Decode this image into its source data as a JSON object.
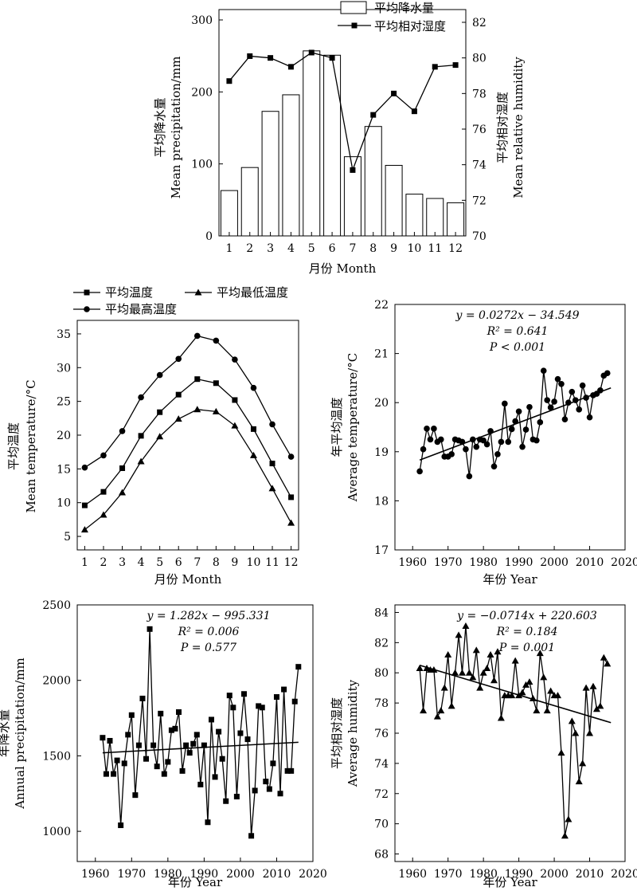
{
  "chart_data": [
    {
      "id": "p1",
      "type": "bar+line",
      "xlabel": "月份  Month",
      "ylabel_zh": "平均降水量",
      "ylabel_en": "Mean precipitation/mm",
      "y2label_zh": "平均相对湿度",
      "y2label_en": "Mean relative humidity",
      "categories": [
        "1",
        "2",
        "3",
        "4",
        "5",
        "6",
        "7",
        "8",
        "9",
        "10",
        "11",
        "12"
      ],
      "ylim": [
        0,
        300
      ],
      "yticks": [
        0,
        100,
        200,
        300
      ],
      "y2lim": [
        70,
        82
      ],
      "y2ticks": [
        70,
        72,
        74,
        76,
        78,
        80,
        82
      ],
      "series": [
        {
          "name": "平均降水量",
          "axis": "left",
          "kind": "bar",
          "values": [
            63,
            95,
            173,
            196,
            257,
            251,
            110,
            152,
            98,
            58,
            52,
            46
          ]
        },
        {
          "name": "平均相对湿度",
          "axis": "right",
          "kind": "line",
          "values": [
            78.7,
            80.1,
            80.0,
            79.5,
            80.3,
            80.0,
            73.7,
            76.8,
            78.0,
            77.0,
            79.5,
            79.6
          ]
        }
      ]
    },
    {
      "id": "p2",
      "type": "line",
      "xlabel": "月份  Month",
      "ylabel_zh": "平均温度",
      "ylabel_en": "Mean temperature/°C",
      "x": [
        1,
        2,
        3,
        4,
        5,
        6,
        7,
        8,
        9,
        10,
        11,
        12
      ],
      "xlim": [
        0.6,
        12.4
      ],
      "ylim": [
        3,
        37
      ],
      "yticks": [
        5,
        10,
        15,
        20,
        25,
        30,
        35
      ],
      "series": [
        {
          "name": "平均温度",
          "marker": "square",
          "values": [
            9.6,
            11.6,
            15.1,
            19.9,
            23.4,
            26.0,
            28.3,
            27.7,
            25.2,
            20.9,
            15.8,
            10.8
          ]
        },
        {
          "name": "平均最低温度",
          "marker": "triangle",
          "values": [
            6.0,
            8.2,
            11.5,
            16.1,
            19.8,
            22.4,
            23.8,
            23.5,
            21.4,
            17.0,
            12.1,
            7.0
          ]
        },
        {
          "name": "平均最高温度",
          "marker": "circle",
          "values": [
            15.2,
            17.0,
            20.6,
            25.6,
            28.9,
            31.3,
            34.7,
            34.0,
            31.2,
            27.0,
            21.6,
            16.8
          ]
        }
      ]
    },
    {
      "id": "p3",
      "type": "line",
      "xlabel": "年份  Year",
      "ylabel_zh": "年平均温度",
      "ylabel_en": "Average temperature/°C",
      "xlim": [
        1955,
        2020
      ],
      "xticks": [
        1960,
        1970,
        1980,
        1990,
        2000,
        2010,
        2020
      ],
      "ylim": [
        17,
        22
      ],
      "yticks": [
        17,
        18,
        19,
        20,
        21,
        22
      ],
      "marker": "circle",
      "years_start": 1962,
      "values": [
        18.6,
        19.05,
        19.47,
        19.25,
        19.47,
        19.2,
        19.25,
        18.9,
        18.9,
        18.95,
        19.25,
        19.23,
        19.2,
        19.05,
        18.5,
        19.25,
        19.1,
        19.25,
        19.23,
        19.15,
        19.42,
        18.7,
        18.95,
        19.2,
        19.98,
        19.2,
        19.46,
        19.62,
        19.82,
        19.1,
        19.45,
        19.91,
        19.25,
        19.23,
        19.6,
        20.65,
        20.05,
        19.9,
        20.02,
        20.48,
        20.38,
        19.66,
        20.0,
        20.22,
        20.05,
        19.86,
        20.35,
        20.1,
        19.7,
        20.15,
        20.18,
        20.25,
        20.55,
        20.6
      ],
      "trend": {
        "x": [
          1962,
          2016
        ],
        "y": [
          18.83,
          20.3
        ]
      },
      "equation": "y = 0.0272x − 34.549",
      "r2": "R² = 0.641",
      "p": "P < 0.001"
    },
    {
      "id": "p4",
      "type": "line",
      "xlabel": "年份  Year",
      "ylabel_zh": "年降水量",
      "ylabel_en": "Annual precipitation/mm",
      "xlim": [
        1955,
        2020
      ],
      "xticks": [
        1960,
        1970,
        1980,
        1990,
        2000,
        2010,
        2020
      ],
      "ylim": [
        800,
        2500
      ],
      "yticks": [
        1000,
        1500,
        2000,
        2500
      ],
      "marker": "square",
      "years_start": 1962,
      "values": [
        1620,
        1380,
        1600,
        1380,
        1470,
        1040,
        1450,
        1640,
        1770,
        1240,
        1570,
        1880,
        1480,
        2340,
        1570,
        1430,
        1780,
        1380,
        1460,
        1670,
        1680,
        1790,
        1400,
        1570,
        1520,
        1580,
        1640,
        1310,
        1570,
        1060,
        1740,
        1360,
        1660,
        1480,
        1200,
        1900,
        1820,
        1230,
        1650,
        1910,
        1610,
        970,
        1270,
        1830,
        1820,
        1330,
        1280,
        1450,
        1890,
        1250,
        1940,
        1400,
        1400,
        1860,
        2090
      ],
      "trend": {
        "x": [
          1962,
          2016
        ],
        "y": [
          1520,
          1590
        ]
      },
      "equation": "y = 1.282x −  995.331",
      "r2": "R² = 0.006",
      "p": "P = 0.577"
    },
    {
      "id": "p5",
      "type": "line",
      "xlabel": "年份  Year",
      "ylabel_zh": "平均相对湿度",
      "ylabel_en": "Average humidity",
      "xlim": [
        1955,
        2020
      ],
      "xticks": [
        1960,
        1970,
        1980,
        1990,
        2000,
        2010,
        2020
      ],
      "ylim": [
        67.5,
        84.5
      ],
      "yticks": [
        68,
        70,
        72,
        74,
        76,
        78,
        80,
        82,
        84
      ],
      "marker": "triangle",
      "years_start": 1962,
      "values": [
        80.3,
        77.5,
        80.3,
        80.2,
        80.2,
        77.1,
        77.5,
        79.0,
        81.2,
        77.8,
        80.0,
        82.5,
        80.0,
        83.1,
        80.0,
        79.7,
        81.5,
        79.0,
        80.0,
        80.3,
        81.2,
        79.5,
        81.4,
        77.0,
        78.5,
        78.5,
        78.5,
        80.8,
        78.5,
        78.7,
        79.2,
        79.4,
        78.3,
        77.5,
        81.3,
        79.7,
        77.5,
        78.8,
        78.5,
        78.5,
        74.7,
        69.2,
        70.3,
        76.8,
        76.0,
        72.8,
        74.0,
        79.0,
        76.0,
        79.1,
        77.6,
        77.8,
        81.0,
        80.6
      ],
      "trend": {
        "x": [
          1962,
          2016
        ],
        "y": [
          80.5,
          76.7
        ]
      },
      "equation": "y = −0.0714x + 220.603",
      "r2": "R² = 0.184",
      "p": "P = 0.001"
    }
  ]
}
